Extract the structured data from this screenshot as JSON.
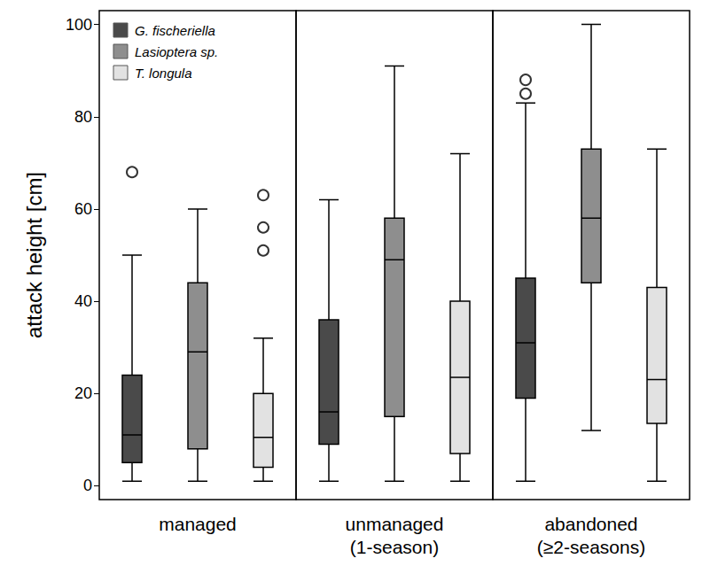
{
  "chart_data": {
    "type": "boxplot",
    "ylabel": "attack height [cm]",
    "ylim": [
      -3,
      103
    ],
    "yticks": [
      0,
      20,
      40,
      60,
      80,
      100
    ],
    "categories": [
      "managed",
      "unmanaged (1-season)",
      "abandoned (≥2-seasons)"
    ],
    "legend": "upper left",
    "series": [
      {
        "name": "G. fischeriella",
        "color": "#4a4a4a",
        "values": [
          [
            1,
            5,
            11,
            24,
            50
          ],
          [
            1,
            9,
            16,
            36,
            62
          ],
          [
            1,
            19,
            31,
            45,
            83
          ]
        ],
        "outliers": [
          [
            68
          ],
          [],
          [
            85,
            88
          ]
        ]
      },
      {
        "name": "Lasioptera sp.",
        "color": "#8e8e8e",
        "values": [
          [
            1,
            8,
            29,
            44,
            60
          ],
          [
            1,
            15,
            49,
            58,
            91
          ],
          [
            12,
            44,
            58,
            73,
            100
          ]
        ],
        "outliers": [
          [],
          [],
          []
        ]
      },
      {
        "name": "T. longula",
        "color": "#e2e2e2",
        "values": [
          [
            1,
            4,
            10.5,
            20,
            32
          ],
          [
            1,
            7,
            23.5,
            40,
            72
          ],
          [
            1,
            13.5,
            23,
            43,
            73
          ]
        ],
        "outliers": [
          [
            51,
            56,
            63
          ],
          [],
          []
        ]
      }
    ]
  }
}
